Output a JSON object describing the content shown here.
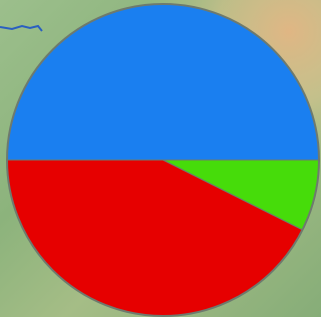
{
  "chart_data": {
    "type": "pie",
    "values": [
      50,
      7.4,
      42.6
    ],
    "colors": [
      "#1a7ff0",
      "#46dc0a",
      "#e60000"
    ]
  }
}
